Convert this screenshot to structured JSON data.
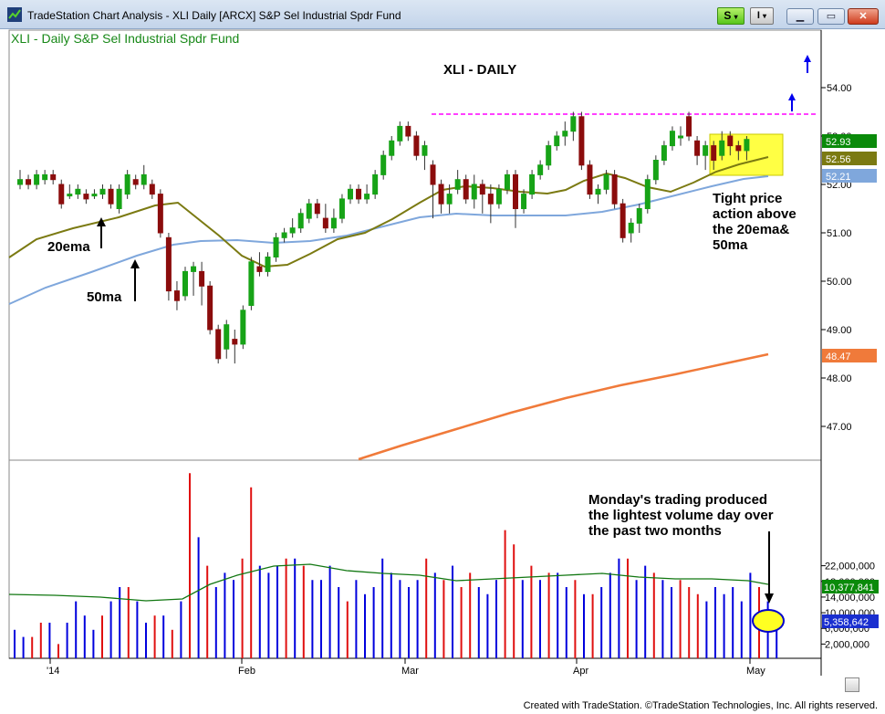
{
  "window": {
    "title": "TradeStation Chart Analysis - XLI Daily [ARCX] S&P Sel Industrial Spdr Fund",
    "s_button_label": "S",
    "i_button_label": "I"
  },
  "chart": {
    "symbol_label": "XLI - Daily  S&P Sel Industrial Spdr Fund",
    "heading": "XLI - DAILY",
    "annotations": {
      "ema20": "20ema",
      "ma50": "50ma",
      "tight_line1": "Tight price",
      "tight_line2": "action above",
      "tight_line3": "the 20ema&",
      "tight_line4": "50ma",
      "volume_line1": "Monday's trading produced",
      "volume_line2": "the lightest volume day over",
      "volume_line3": "the past two months"
    },
    "price_axis_labels": [
      "54.00",
      "53.00",
      "52.00",
      "51.00",
      "50.00",
      "49.00",
      "48.00",
      "47.00"
    ],
    "price_badges": {
      "last": "52.93",
      "ema20": "52.56",
      "ma50": "52.21",
      "ma200": "48.47"
    },
    "volume_axis_labels": [
      "22,000,000",
      "18,000,000",
      "14,000,000",
      "10,000,000",
      "6,000,000",
      "2,000,000"
    ],
    "volume_badges": {
      "avg": "10,377,841",
      "last": "5,358,642"
    },
    "date_labels": [
      "'14",
      "Feb",
      "Mar",
      "Apr",
      "May"
    ],
    "colors": {
      "up": "#17a317",
      "down": "#8b0c0c",
      "ema20": "#7b7a12",
      "ma50": "#7fa7dc",
      "ma200": "#f07a3a",
      "resistance": "#ff00ff",
      "vol_up": "#0000dd",
      "vol_down": "#e01010",
      "vol_avg": "#117711",
      "highlight": "#ffff44"
    }
  },
  "status": {
    "copyright": "Created with TradeStation. ©TradeStation Technologies, Inc. All rights reserved."
  }
}
